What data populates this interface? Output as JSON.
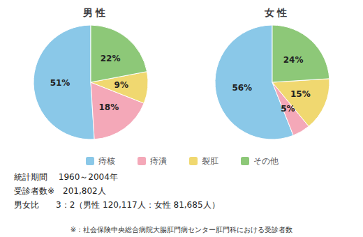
{
  "chart_data": [
    {
      "type": "pie",
      "title": "男 性",
      "categories": [
        "痔核",
        "痔潰",
        "裂肛",
        "その他"
      ],
      "values": [
        51,
        18,
        9,
        22
      ],
      "value_labels": [
        "51%",
        "18%",
        "9%",
        "22%"
      ],
      "colors": [
        "#8AC8E8",
        "#F4A8B8",
        "#F0D870",
        "#8DC878"
      ],
      "data_labels": true,
      "legend": "bottom",
      "annotations": [
        "統計期間　 1960～2004年",
        "受診者数※　201,802人",
        "男女比　　3：2（男性 120,117人：女性 81,685人）",
        "※：社会保険中央総合病院大腸肛門病センター肛門科における受診者数"
      ]
    },
    {
      "type": "pie",
      "title": "女 性",
      "categories": [
        "痔核",
        "痔潰",
        "裂肛",
        "その他"
      ],
      "values": [
        56,
        5,
        15,
        24
      ],
      "value_labels": [
        "56%",
        "5%",
        "15%",
        "24%"
      ],
      "colors": [
        "#8AC8E8",
        "#F4A8B8",
        "#F0D870",
        "#8DC878"
      ],
      "data_labels": true
    }
  ]
}
